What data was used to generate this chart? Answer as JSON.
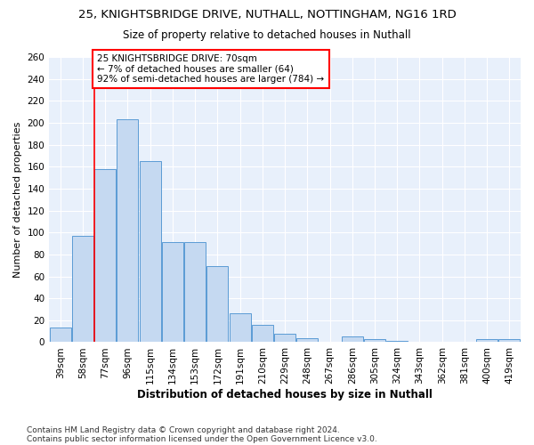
{
  "title1": "25, KNIGHTSBRIDGE DRIVE, NUTHALL, NOTTINGHAM, NG16 1RD",
  "title2": "Size of property relative to detached houses in Nuthall",
  "xlabel": "Distribution of detached houses by size in Nuthall",
  "ylabel": "Number of detached properties",
  "categories": [
    "39sqm",
    "58sqm",
    "77sqm",
    "96sqm",
    "115sqm",
    "134sqm",
    "153sqm",
    "172sqm",
    "191sqm",
    "210sqm",
    "229sqm",
    "248sqm",
    "267sqm",
    "286sqm",
    "305sqm",
    "324sqm",
    "343sqm",
    "362sqm",
    "381sqm",
    "400sqm",
    "419sqm"
  ],
  "values": [
    13,
    97,
    158,
    203,
    165,
    91,
    91,
    69,
    26,
    16,
    8,
    4,
    0,
    5,
    3,
    1,
    0,
    0,
    0,
    3,
    3
  ],
  "bar_color": "#c5d9f1",
  "bar_edge_color": "#5b9bd5",
  "annotation_line1": "25 KNIGHTSBRIDGE DRIVE: 70sqm",
  "annotation_line2": "← 7% of detached houses are smaller (64)",
  "annotation_line3": "92% of semi-detached houses are larger (784) →",
  "annotation_box_color": "white",
  "annotation_box_edge_color": "red",
  "vline_x": 1.5,
  "vline_color": "red",
  "ylim": [
    0,
    260
  ],
  "yticks": [
    0,
    20,
    40,
    60,
    80,
    100,
    120,
    140,
    160,
    180,
    200,
    220,
    240,
    260
  ],
  "bg_color": "#e8f0fb",
  "footer1": "Contains HM Land Registry data © Crown copyright and database right 2024.",
  "footer2": "Contains public sector information licensed under the Open Government Licence v3.0.",
  "title1_fontsize": 9.5,
  "title2_fontsize": 8.5,
  "xlabel_fontsize": 8.5,
  "ylabel_fontsize": 8,
  "tick_fontsize": 7.5,
  "annotation_fontsize": 7.5,
  "footer_fontsize": 6.5
}
